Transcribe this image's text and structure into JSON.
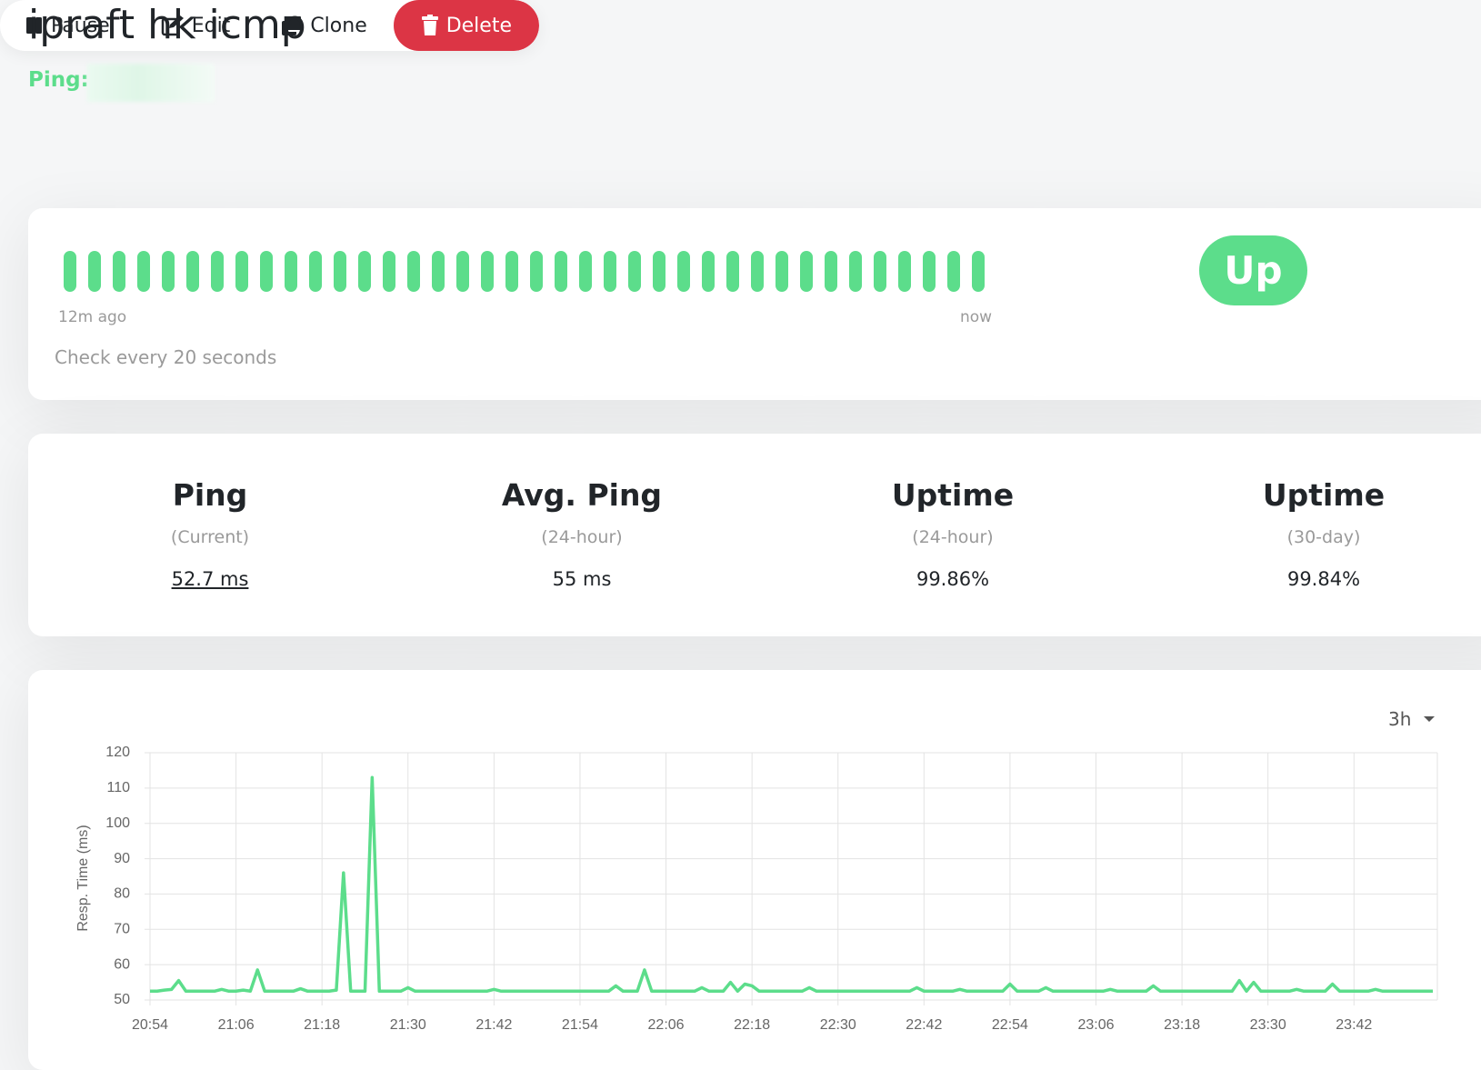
{
  "header": {
    "title": "ipraft hk icmp",
    "ping_label": "Ping:"
  },
  "actions": [
    "Pause",
    "Edit",
    "Clone",
    "Delete"
  ],
  "heartbeat": {
    "start_label": "12m ago",
    "end_label": "now",
    "interval_text": "Check every 20 seconds",
    "status": "Up"
  },
  "stats": [
    {
      "title": "Ping",
      "period": "(Current)",
      "value": "52.7 ms"
    },
    {
      "title": "Avg. Ping",
      "period": "(24-hour)",
      "value": "55 ms"
    },
    {
      "title": "Uptime",
      "period": "(24-hour)",
      "value": "99.86%"
    },
    {
      "title": "Uptime",
      "period": "(30-day)",
      "value": "99.84%"
    }
  ],
  "chart_data": {
    "type": "line",
    "range": "3h",
    "y_label": "Resp. Time (ms)",
    "x": [
      "20:54",
      "20:55",
      "20:56",
      "20:57",
      "20:58",
      "20:59",
      "21:00",
      "21:01",
      "21:02",
      "21:03",
      "21:04",
      "21:05",
      "21:06",
      "21:07",
      "21:08",
      "21:09",
      "21:10",
      "21:11",
      "21:12",
      "21:13",
      "21:14",
      "21:15",
      "21:16",
      "21:17",
      "21:18",
      "21:19",
      "21:20",
      "21:21",
      "21:22",
      "21:23",
      "21:24",
      "21:25",
      "21:26",
      "21:27",
      "21:28",
      "21:29",
      "21:30",
      "21:31",
      "21:32",
      "21:33",
      "21:34",
      "21:35",
      "21:36",
      "21:37",
      "21:38",
      "21:39",
      "21:40",
      "21:41",
      "21:42",
      "21:43",
      "21:44",
      "21:45",
      "21:46",
      "21:47",
      "21:48",
      "21:49",
      "21:50",
      "21:51",
      "21:52",
      "21:53",
      "21:54",
      "21:55",
      "21:56",
      "21:57",
      "21:58",
      "21:59",
      "22:00",
      "22:01",
      "22:02",
      "22:03",
      "22:04",
      "22:05",
      "22:06",
      "22:07",
      "22:08",
      "22:09",
      "22:10",
      "22:11",
      "22:12",
      "22:13",
      "22:14",
      "22:15",
      "22:16",
      "22:17",
      "22:18",
      "22:19",
      "22:20",
      "22:21",
      "22:22",
      "22:23",
      "22:24",
      "22:25",
      "22:26",
      "22:27",
      "22:28",
      "22:29",
      "22:30",
      "22:31",
      "22:32",
      "22:33",
      "22:34",
      "22:35",
      "22:36",
      "22:37",
      "22:38",
      "22:39",
      "22:40",
      "22:41",
      "22:42",
      "22:43",
      "22:44",
      "22:45",
      "22:46",
      "22:47",
      "22:48",
      "22:49",
      "22:50",
      "22:51",
      "22:52",
      "22:53",
      "22:54",
      "22:55",
      "22:56",
      "22:57",
      "22:58",
      "22:59",
      "23:00",
      "23:01",
      "23:02",
      "23:03",
      "23:04",
      "23:05",
      "23:06",
      "23:07",
      "23:08",
      "23:09",
      "23:10",
      "23:11",
      "23:12",
      "23:13",
      "23:14",
      "23:15",
      "23:16",
      "23:17",
      "23:18",
      "23:19",
      "23:20",
      "23:21",
      "23:22",
      "23:23",
      "23:24",
      "23:25",
      "23:26",
      "23:27",
      "23:28",
      "23:29",
      "23:30",
      "23:31",
      "23:32",
      "23:33",
      "23:34",
      "23:35",
      "23:36",
      "23:37",
      "23:38",
      "23:39",
      "23:40",
      "23:41",
      "23:42",
      "23:43",
      "23:44",
      "23:45",
      "23:46",
      "23:47",
      "23:48",
      "23:49",
      "23:50",
      "23:51",
      "23:52",
      "23:53"
    ],
    "series": [
      {
        "color": "#5cdd8b",
        "values": [
          52.5,
          52.5,
          52.8,
          53,
          55.5,
          52.5,
          52.5,
          52.5,
          52.5,
          52.5,
          53,
          52.5,
          52.5,
          52.8,
          52.5,
          58.5,
          52.5,
          52.5,
          52.5,
          52.5,
          52.5,
          53.2,
          52.5,
          52.5,
          52.5,
          52.5,
          52.8,
          86,
          52.5,
          52.5,
          52.5,
          113,
          52.5,
          52.5,
          52.5,
          52.5,
          53.5,
          52.5,
          52.5,
          52.5,
          52.5,
          52.5,
          52.5,
          52.5,
          52.5,
          52.5,
          52.5,
          52.5,
          53,
          52.5,
          52.5,
          52.5,
          52.5,
          52.5,
          52.5,
          52.5,
          52.5,
          52.5,
          52.5,
          52.5,
          52.5,
          52.5,
          52.5,
          52.5,
          52.5,
          54,
          52.5,
          52.5,
          52.5,
          58.5,
          52.5,
          52.5,
          52.5,
          52.5,
          52.5,
          52.5,
          52.5,
          53.5,
          52.5,
          52.5,
          52.5,
          55,
          52.5,
          54.5,
          54,
          52.5,
          52.5,
          52.5,
          52.5,
          52.5,
          52.5,
          52.5,
          53.5,
          52.5,
          52.5,
          52.5,
          52.5,
          52.5,
          52.5,
          52.5,
          52.5,
          52.5,
          52.5,
          52.5,
          52.5,
          52.5,
          52.5,
          53.5,
          52.5,
          52.5,
          52.5,
          52.5,
          52.5,
          53,
          52.5,
          52.5,
          52.5,
          52.5,
          52.5,
          52.5,
          54.5,
          52.5,
          52.5,
          52.5,
          52.5,
          53.5,
          52.5,
          52.5,
          52.5,
          52.5,
          52.5,
          52.5,
          52.5,
          52.5,
          53,
          52.5,
          52.5,
          52.5,
          52.5,
          52.5,
          54,
          52.5,
          52.5,
          52.5,
          52.5,
          52.5,
          52.5,
          52.5,
          52.5,
          52.5,
          52.5,
          52.5,
          55.5,
          52.5,
          55,
          52.5,
          52.5,
          52.5,
          52.5,
          52.5,
          53,
          52.5,
          52.5,
          52.5,
          52.5,
          54.5,
          52.5,
          52.5,
          52.5,
          52.5,
          52.5,
          53,
          52.5,
          52.5,
          52.5,
          52.5,
          52.5,
          52.5,
          52.5,
          52.5
        ]
      }
    ],
    "ylim": [
      50,
      120
    ],
    "yticks": [
      50,
      60,
      70,
      80,
      90,
      100,
      110,
      120
    ],
    "xticks": [
      "20:54",
      "21:06",
      "21:18",
      "21:30",
      "21:42",
      "21:54",
      "22:06",
      "22:18",
      "22:30",
      "22:42",
      "22:54",
      "23:06",
      "23:18",
      "23:30",
      "23:42"
    ],
    "grid": true
  }
}
